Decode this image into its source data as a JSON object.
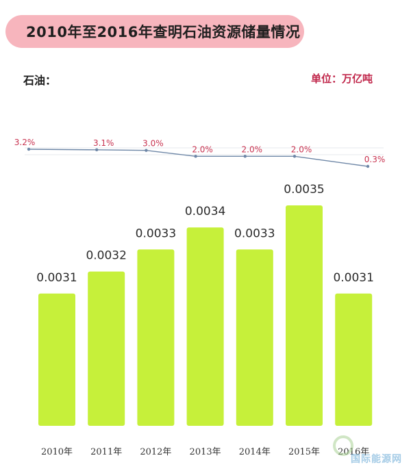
{
  "title": "2010年至2016年查明石油资源储量情况",
  "series_label": "石油：",
  "unit_label": "单位：万亿吨",
  "watermark_text": "国际能源网",
  "colors": {
    "title_bg": "#f7b5bd",
    "bar": "#c6f03a",
    "line": "#6d86a6",
    "percent_text": "#c8324f",
    "unit_text": "#c0264a"
  },
  "chart_data": {
    "type": "bar",
    "categories": [
      "2010年",
      "2011年",
      "2012年",
      "2013年",
      "2014年",
      "2015年",
      "2016年"
    ],
    "values": [
      0.0031,
      0.0032,
      0.0033,
      0.0034,
      0.0033,
      0.0035,
      0.0031
    ],
    "value_labels": [
      "0.0031",
      "0.0032",
      "0.0033",
      "0.0034",
      "0.0033",
      "0.0035",
      "0.0031"
    ],
    "line_series": {
      "type": "line",
      "values": [
        3.2,
        3.1,
        3.0,
        2.0,
        2.0,
        2.0,
        0.3
      ],
      "labels": [
        "3.2%",
        "3.1%",
        "3.0%",
        "2.0%",
        "2.0%",
        "2.0%",
        "0.3%"
      ]
    },
    "grid": false
  }
}
